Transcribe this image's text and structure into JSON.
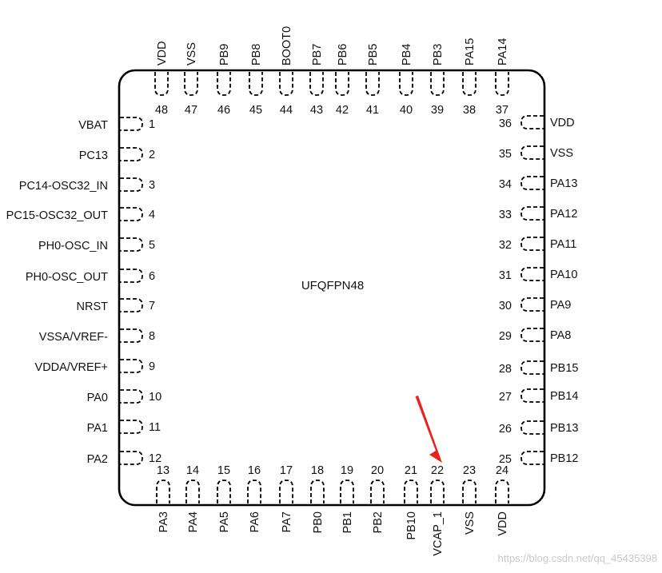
{
  "package": {
    "title": "UFQFPN48",
    "outline_color": "#000000",
    "pad_color": "#000000"
  },
  "pins_left": [
    {
      "number": "1",
      "name": "VBAT"
    },
    {
      "number": "2",
      "name": "PC13"
    },
    {
      "number": "3",
      "name": "PC14-OSC32_IN"
    },
    {
      "number": "4",
      "name": "PC15-OSC32_OUT"
    },
    {
      "number": "5",
      "name": "PH0-OSC_IN"
    },
    {
      "number": "6",
      "name": "PH0-OSC_OUT"
    },
    {
      "number": "7",
      "name": "NRST"
    },
    {
      "number": "8",
      "name": "VSSA/VREF-"
    },
    {
      "number": "9",
      "name": "VDDA/VREF+"
    },
    {
      "number": "10",
      "name": "PA0"
    },
    {
      "number": "11",
      "name": "PA1"
    },
    {
      "number": "12",
      "name": "PA2"
    }
  ],
  "pins_bottom": [
    {
      "number": "13",
      "name": "PA3"
    },
    {
      "number": "14",
      "name": "PA4"
    },
    {
      "number": "15",
      "name": "PA5"
    },
    {
      "number": "16",
      "name": "PA6"
    },
    {
      "number": "17",
      "name": "PA7"
    },
    {
      "number": "18",
      "name": "PB0"
    },
    {
      "number": "19",
      "name": "PB1"
    },
    {
      "number": "20",
      "name": "PB2"
    },
    {
      "number": "21",
      "name": "PB10"
    },
    {
      "number": "22",
      "name": "VCAP_1"
    },
    {
      "number": "23",
      "name": "VSS"
    },
    {
      "number": "24",
      "name": "VDD"
    }
  ],
  "pins_right": [
    {
      "number": "25",
      "name": "PB12"
    },
    {
      "number": "26",
      "name": "PB13"
    },
    {
      "number": "27",
      "name": "PB14"
    },
    {
      "number": "28",
      "name": "PB15"
    },
    {
      "number": "29",
      "name": "PA8"
    },
    {
      "number": "30",
      "name": "PA9"
    },
    {
      "number": "31",
      "name": "PA10"
    },
    {
      "number": "32",
      "name": "PA11"
    },
    {
      "number": "33",
      "name": "PA12"
    },
    {
      "number": "34",
      "name": "PA13"
    },
    {
      "number": "35",
      "name": "VSS"
    },
    {
      "number": "36",
      "name": "VDD"
    }
  ],
  "pins_top": [
    {
      "number": "37",
      "name": "PA14"
    },
    {
      "number": "38",
      "name": "PA15"
    },
    {
      "number": "39",
      "name": "PB3"
    },
    {
      "number": "40",
      "name": "PB4"
    },
    {
      "number": "41",
      "name": "PB5"
    },
    {
      "number": "42",
      "name": "PB6"
    },
    {
      "number": "43",
      "name": "PB7"
    },
    {
      "number": "44",
      "name": "BOOT0"
    },
    {
      "number": "45",
      "name": "PB8"
    },
    {
      "number": "46",
      "name": "PB9"
    },
    {
      "number": "47",
      "name": "VSS"
    },
    {
      "number": "48",
      "name": "VDD"
    }
  ],
  "annotation": {
    "arrow_color": "#e8241c",
    "points_to_pin": "22"
  },
  "watermark": "https://blog.csdn.net/qq_45435398"
}
